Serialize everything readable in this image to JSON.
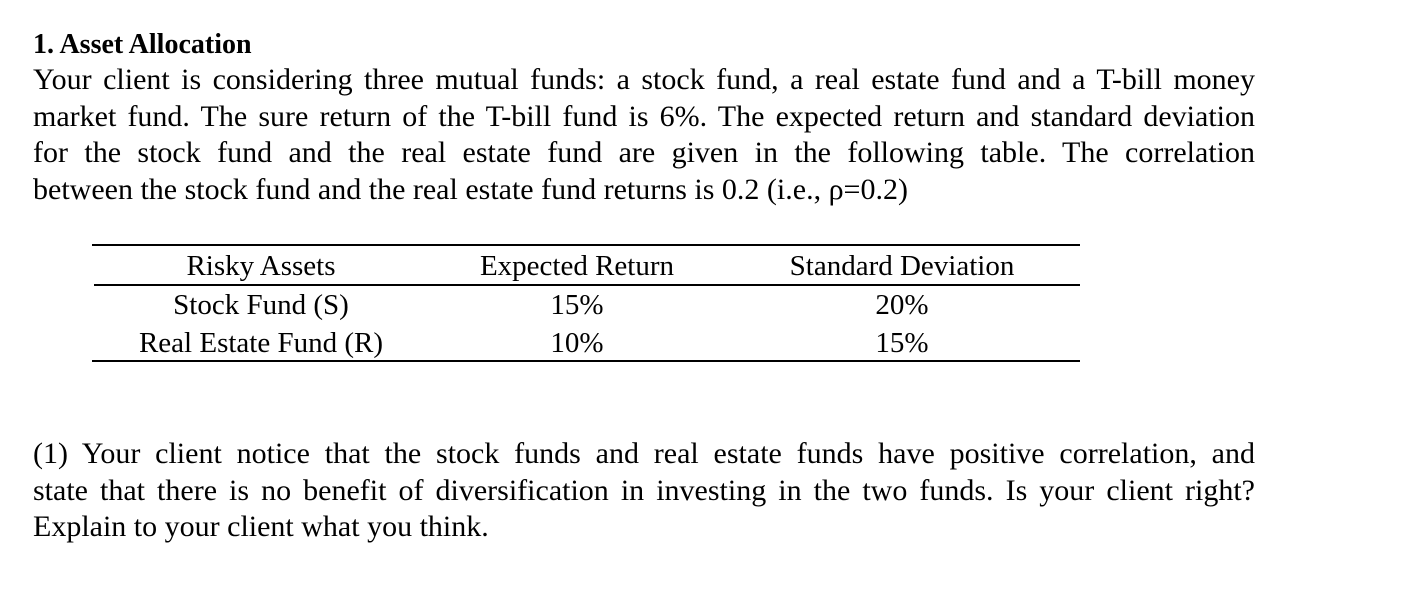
{
  "section": {
    "heading": "1. Asset Allocation",
    "intro_lines": [
      "Your client is considering three mutual funds: a stock fund, a real estate fund and a T-bill money",
      "market fund. The sure return of the T-bill fund is 6%. The expected return and standard deviation",
      "for the stock fund and the real estate fund are given in the following table. The correlation",
      "between the stock fund and the real estate fund returns is 0.2 (i.e., ρ=0.2)"
    ]
  },
  "table": {
    "headers": [
      "Risky Assets",
      "Expected Return",
      "Standard Deviation"
    ],
    "rows": [
      [
        "Stock Fund (S)",
        "15%",
        "20%"
      ],
      [
        "Real Estate Fund (R)",
        "10%",
        "15%"
      ]
    ]
  },
  "question": {
    "lines": [
      "(1) Your client notice that the stock funds and real estate funds have positive correlation, and",
      "state that there is no benefit of diversification in investing in the two funds. Is your client right?",
      "Explain to your client what you think."
    ]
  }
}
